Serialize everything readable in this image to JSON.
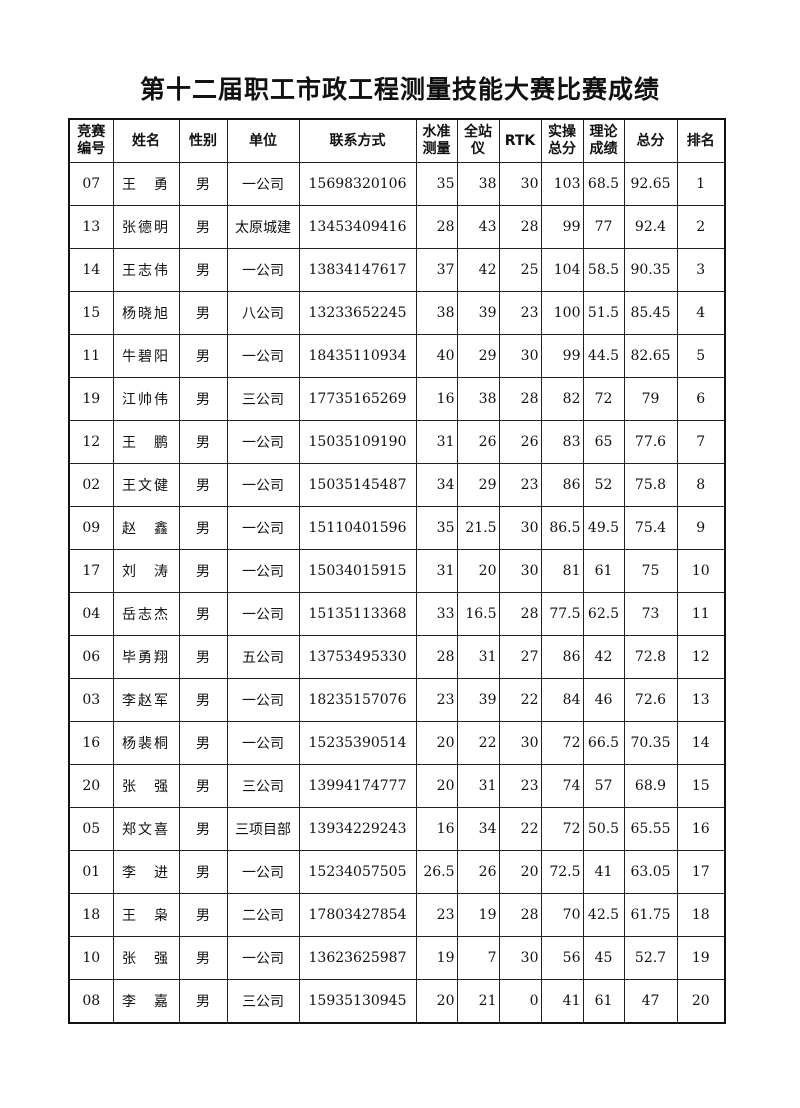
{
  "title": "第十二届职工市政工程测量技能大赛比赛成绩",
  "columns": [
    "竞赛\n编号",
    "姓名",
    "性别",
    "单位",
    "联系方式",
    "水准\n测量",
    "全站\n仪",
    "RTK",
    "实操\n总分",
    "理论\n成绩",
    "总分",
    "排名"
  ],
  "rows": [
    [
      "07",
      "王　勇",
      "男",
      "一公司",
      "15698320106",
      "35",
      "38",
      "30",
      "103",
      "68.5",
      "92.65",
      "1"
    ],
    [
      "13",
      "张德明",
      "男",
      "太原城建",
      "13453409416",
      "28",
      "43",
      "28",
      "99",
      "77",
      "92.4",
      "2"
    ],
    [
      "14",
      "王志伟",
      "男",
      "一公司",
      "13834147617",
      "37",
      "42",
      "25",
      "104",
      "58.5",
      "90.35",
      "3"
    ],
    [
      "15",
      "杨晓旭",
      "男",
      "八公司",
      "13233652245",
      "38",
      "39",
      "23",
      "100",
      "51.5",
      "85.45",
      "4"
    ],
    [
      "11",
      "牛碧阳",
      "男",
      "一公司",
      "18435110934",
      "40",
      "29",
      "30",
      "99",
      "44.5",
      "82.65",
      "5"
    ],
    [
      "19",
      "江帅伟",
      "男",
      "三公司",
      "17735165269",
      "16",
      "38",
      "28",
      "82",
      "72",
      "79",
      "6"
    ],
    [
      "12",
      "王　鹏",
      "男",
      "一公司",
      "15035109190",
      "31",
      "26",
      "26",
      "83",
      "65",
      "77.6",
      "7"
    ],
    [
      "02",
      "王文健",
      "男",
      "一公司",
      "15035145487",
      "34",
      "29",
      "23",
      "86",
      "52",
      "75.8",
      "8"
    ],
    [
      "09",
      "赵　鑫",
      "男",
      "一公司",
      "15110401596",
      "35",
      "21.5",
      "30",
      "86.5",
      "49.5",
      "75.4",
      "9"
    ],
    [
      "17",
      "刘　涛",
      "男",
      "一公司",
      "15034015915",
      "31",
      "20",
      "30",
      "81",
      "61",
      "75",
      "10"
    ],
    [
      "04",
      "岳志杰",
      "男",
      "一公司",
      "15135113368",
      "33",
      "16.5",
      "28",
      "77.5",
      "62.5",
      "73",
      "11"
    ],
    [
      "06",
      "毕勇翔",
      "男",
      "五公司",
      "13753495330",
      "28",
      "31",
      "27",
      "86",
      "42",
      "72.8",
      "12"
    ],
    [
      "03",
      "李赵军",
      "男",
      "一公司",
      "18235157076",
      "23",
      "39",
      "22",
      "84",
      "46",
      "72.6",
      "13"
    ],
    [
      "16",
      "杨裴桐",
      "男",
      "一公司",
      "15235390514",
      "20",
      "22",
      "30",
      "72",
      "66.5",
      "70.35",
      "14"
    ],
    [
      "20",
      "张　强",
      "男",
      "三公司",
      "13994174777",
      "20",
      "31",
      "23",
      "74",
      "57",
      "68.9",
      "15"
    ],
    [
      "05",
      "郑文喜",
      "男",
      "三项目部",
      "13934229243",
      "16",
      "34",
      "22",
      "72",
      "50.5",
      "65.55",
      "16"
    ],
    [
      "01",
      "李　进",
      "男",
      "一公司",
      "15234057505",
      "26.5",
      "26",
      "20",
      "72.5",
      "41",
      "63.05",
      "17"
    ],
    [
      "18",
      "王　枭",
      "男",
      "二公司",
      "17803427854",
      "23",
      "19",
      "28",
      "70",
      "42.5",
      "61.75",
      "18"
    ],
    [
      "10",
      "张　强",
      "男",
      "一公司",
      "13623625987",
      "19",
      "7",
      "30",
      "56",
      "45",
      "52.7",
      "19"
    ],
    [
      "08",
      "李　嘉",
      "男",
      "三公司",
      "15935130945",
      "20",
      "21",
      "0",
      "41",
      "61",
      "47",
      "20"
    ]
  ]
}
